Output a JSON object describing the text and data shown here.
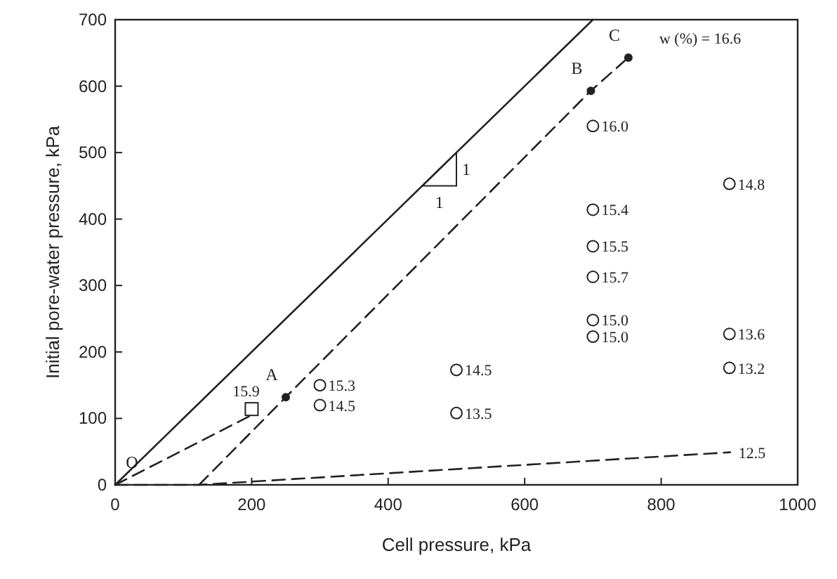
{
  "chart_data": {
    "type": "line",
    "xlabel": "Cell pressure, kPa",
    "ylabel": "Initial pore-water pressure, kPa",
    "xlim": [
      0,
      1000
    ],
    "ylim": [
      0,
      700
    ],
    "xticks": [
      0,
      200,
      400,
      600,
      800,
      1000
    ],
    "yticks": [
      0,
      100,
      200,
      300,
      400,
      500,
      600,
      700
    ],
    "grid": false,
    "series": [
      {
        "color": "#222222",
        "line_style": "solid",
        "marker": "none",
        "x": [
          0,
          700
        ],
        "values": [
          0,
          700
        ]
      },
      {
        "color": "#222222",
        "line_style": "dashed",
        "marker": "none",
        "x": [
          0,
          200
        ],
        "values": [
          0,
          105
        ]
      },
      {
        "color": "#222222",
        "line_style": "dashed",
        "marker": "none",
        "x": [
          123,
          250,
          697,
          752
        ],
        "values": [
          0,
          132,
          593,
          643
        ]
      },
      {
        "color": "#222222",
        "line_style": "dashed",
        "marker": "none",
        "x": [
          0,
          123,
          901
        ],
        "values": [
          0,
          0,
          49
        ]
      },
      {
        "type": "scatter",
        "color": "#222222",
        "marker": "circle",
        "x": [
          250,
          697,
          752
        ],
        "values": [
          132,
          593,
          643
        ]
      },
      {
        "type": "scatter",
        "color": "#222222",
        "marker": "circle",
        "x": [
          300,
          300,
          500,
          500,
          700,
          700,
          700,
          700,
          700,
          700,
          900,
          900,
          900
        ],
        "values": [
          150,
          120,
          173,
          108,
          540,
          414,
          359,
          313,
          248,
          223,
          453,
          227,
          176
        ]
      },
      {
        "type": "scatter",
        "color": "#222222",
        "marker": "square",
        "x": [
          200
        ],
        "values": [
          114
        ]
      }
    ],
    "annotations": [
      {
        "text": "O",
        "x": 0,
        "y": 0
      },
      {
        "text": "A",
        "x": 250,
        "y": 132
      },
      {
        "text": "B",
        "x": 697,
        "y": 593
      },
      {
        "text": "C",
        "x": 752,
        "y": 643
      },
      {
        "text": "w (%) = 16.6",
        "x": 752,
        "y": 643
      },
      {
        "text": "12.5",
        "x": 901,
        "y": 49
      },
      {
        "text": "15.9",
        "x": 200,
        "y": 114
      },
      {
        "text": "15.3",
        "x": 300,
        "y": 150
      },
      {
        "text": "14.5",
        "x": 300,
        "y": 120
      },
      {
        "text": "14.5",
        "x": 500,
        "y": 173
      },
      {
        "text": "13.5",
        "x": 500,
        "y": 108
      },
      {
        "text": "16.0",
        "x": 700,
        "y": 540
      },
      {
        "text": "15.4",
        "x": 700,
        "y": 414
      },
      {
        "text": "15.5",
        "x": 700,
        "y": 359
      },
      {
        "text": "15.7",
        "x": 700,
        "y": 313
      },
      {
        "text": "15.0",
        "x": 700,
        "y": 248
      },
      {
        "text": "15.0",
        "x": 700,
        "y": 223
      },
      {
        "text": "14.8",
        "x": 900,
        "y": 453
      },
      {
        "text": "13.6",
        "x": 900,
        "y": 227
      },
      {
        "text": "13.2",
        "x": 900,
        "y": 176
      },
      "1",
      "1"
    ]
  }
}
